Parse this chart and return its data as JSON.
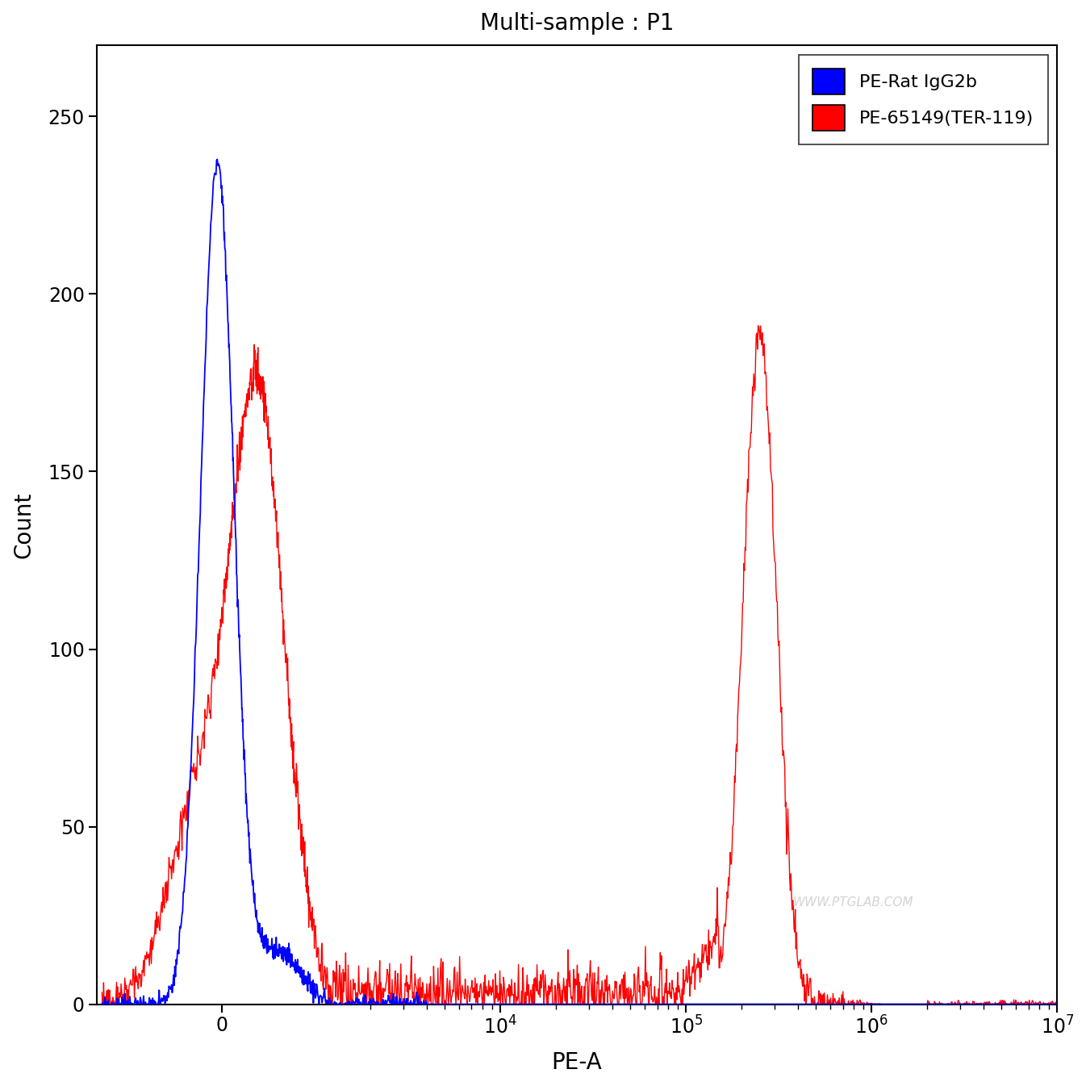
{
  "title": "Multi-sample : P1",
  "xlabel": "PE-A",
  "ylabel": "Count",
  "legend_labels": [
    "PE-Rat IgG2b",
    "PE-65149(TER-119)"
  ],
  "legend_colors": [
    "#0000ff",
    "#ff0000"
  ],
  "ylim": [
    0,
    270
  ],
  "yticks": [
    0,
    50,
    100,
    150,
    200,
    250
  ],
  "background_color": "#ffffff",
  "watermark": "WWW.PTGLAB.COM",
  "symlog_linthresh": 1000,
  "symlog_linscale": 0.45,
  "xlim_min": -1500,
  "xlim_max": 10000000
}
